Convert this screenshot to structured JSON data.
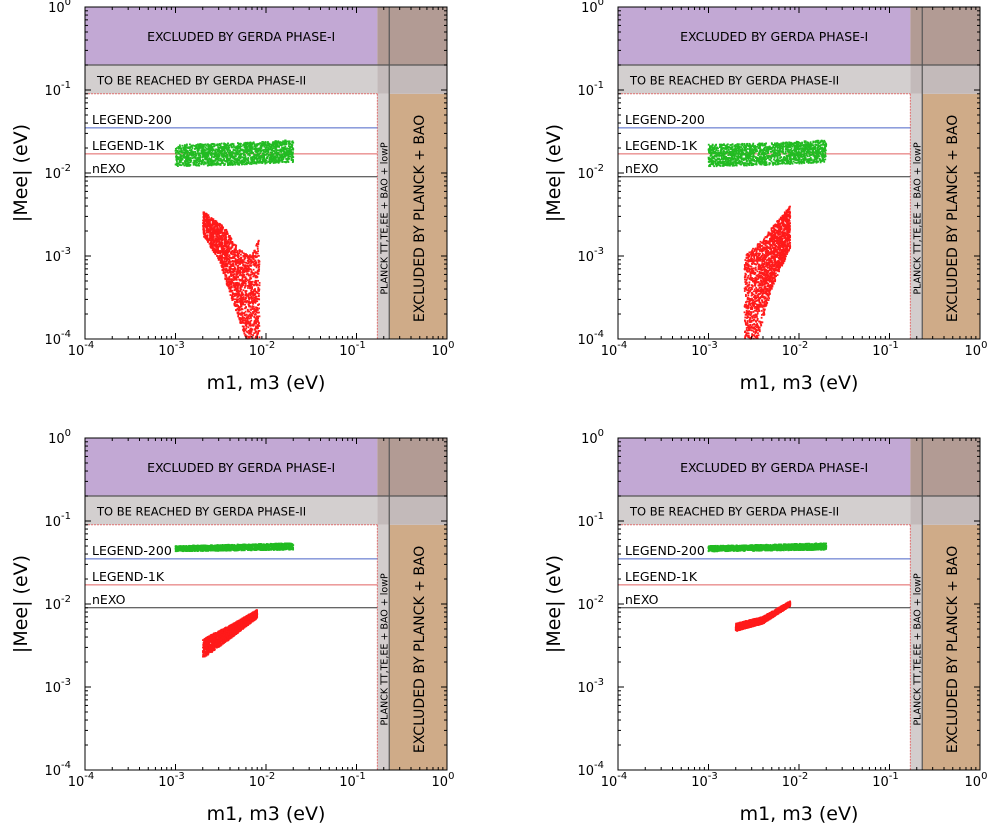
{
  "colors": {
    "gerda1": "#c2a8d4",
    "gerda2": "#d3cfcf",
    "overlap1": "#b29b94",
    "overlap2": "#c3baba",
    "planck_tt": "#d3cdcd",
    "planck_bao": "#cfab88",
    "legend200": "#4a64c8",
    "legend1k": "#e06060",
    "nexo": "#333333",
    "normal_points": "#22bb22",
    "inverted_points": "#ff1a1a"
  },
  "chart_data": [
    {
      "type": "scatter",
      "panel": "top-left",
      "xlabel": "m1, m3 (eV)",
      "ylabel": "|Mee| (eV)",
      "xscale": "log",
      "yscale": "log",
      "xlim": [
        0.0001,
        1
      ],
      "ylim": [
        0.0001,
        1
      ],
      "xticks": [
        {
          "base": "10",
          "exp": "-4"
        },
        {
          "base": "10",
          "exp": "-3"
        },
        {
          "base": "10",
          "exp": "-2"
        },
        {
          "base": "10",
          "exp": "-1"
        },
        {
          "base": "10",
          "exp": "0"
        }
      ],
      "yticks": [
        {
          "base": "10",
          "exp": "-4"
        },
        {
          "base": "10",
          "exp": "-3"
        },
        {
          "base": "10",
          "exp": "-2"
        },
        {
          "base": "10",
          "exp": "-1"
        },
        {
          "base": "10",
          "exp": "0"
        }
      ],
      "bands": {
        "gerda1": "EXCLUDED BY GERDA PHASE-I",
        "gerda2": "TO BE REACHED BY GERDA PHASE-II",
        "planck_tt": "PLANCK TT,TE,EE + BAO + lowP",
        "planck_bao": "EXCLUDED BY PLANCK + BAO"
      },
      "band_limits": {
        "gerda1_y": [
          0.2,
          1
        ],
        "gerda2_y": [
          0.09,
          0.2
        ],
        "planck_tt_x": [
          0.17,
          0.23
        ],
        "planck_bao_x": [
          0.23,
          1
        ]
      },
      "sensitivity_lines": [
        {
          "label": "LEGEND-200",
          "y": 0.035,
          "color": "legend200"
        },
        {
          "label": "LEGEND-1K",
          "y": 0.017,
          "color": "legend1k"
        },
        {
          "label": "nEXO",
          "y": 0.009,
          "color": "nexo"
        }
      ],
      "series": [
        {
          "color": "normal_points",
          "points": [
            [
              0.001,
              0.0165
            ],
            [
              0.002,
              0.0165
            ],
            [
              0.005,
              0.017
            ],
            [
              0.01,
              0.0175
            ],
            [
              0.02,
              0.018
            ]
          ],
          "spread_upper": [
            [
              0.001,
              0.022
            ],
            [
              0.005,
              0.023
            ],
            [
              0.02,
              0.025
            ]
          ],
          "spread_lower": [
            [
              0.001,
              0.012
            ],
            [
              0.005,
              0.0125
            ],
            [
              0.02,
              0.0135
            ]
          ]
        },
        {
          "color": "inverted_points",
          "upper": [
            [
              0.002,
              0.0035
            ],
            [
              0.0035,
              0.0022
            ],
            [
              0.005,
              0.0012
            ],
            [
              0.007,
              0.001
            ],
            [
              0.0085,
              0.0017
            ]
          ],
          "lower": [
            [
              0.002,
              0.0018
            ],
            [
              0.003,
              0.0009
            ],
            [
              0.004,
              0.00035
            ],
            [
              0.006,
              0.0001
            ],
            [
              0.0085,
              0.0001
            ]
          ]
        }
      ]
    },
    {
      "type": "scatter",
      "panel": "top-right",
      "xlabel": "m1, m3 (eV)",
      "ylabel": "|Mee| (eV)",
      "xscale": "log",
      "yscale": "log",
      "xlim": [
        0.0001,
        1
      ],
      "ylim": [
        0.0001,
        1
      ],
      "xticks": [
        {
          "base": "10",
          "exp": "-4"
        },
        {
          "base": "10",
          "exp": "-3"
        },
        {
          "base": "10",
          "exp": "-2"
        },
        {
          "base": "10",
          "exp": "-1"
        },
        {
          "base": "10",
          "exp": "0"
        }
      ],
      "yticks": [
        {
          "base": "10",
          "exp": "-4"
        },
        {
          "base": "10",
          "exp": "-3"
        },
        {
          "base": "10",
          "exp": "-2"
        },
        {
          "base": "10",
          "exp": "-1"
        },
        {
          "base": "10",
          "exp": "0"
        }
      ],
      "bands": {
        "gerda1": "EXCLUDED BY GERDA PHASE-I",
        "gerda2": "TO BE REACHED BY GERDA PHASE-II",
        "planck_tt": "PLANCK TT,TE,EE + BAO + lowP",
        "planck_bao": "EXCLUDED BY PLANCK + BAO"
      },
      "band_limits": {
        "gerda1_y": [
          0.2,
          1
        ],
        "gerda2_y": [
          0.09,
          0.2
        ],
        "planck_tt_x": [
          0.17,
          0.23
        ],
        "planck_bao_x": [
          0.23,
          1
        ]
      },
      "sensitivity_lines": [
        {
          "label": "LEGEND-200",
          "y": 0.035,
          "color": "legend200"
        },
        {
          "label": "LEGEND-1K",
          "y": 0.017,
          "color": "legend1k"
        },
        {
          "label": "nEXO",
          "y": 0.009,
          "color": "nexo"
        }
      ],
      "series": [
        {
          "color": "normal_points",
          "points": [
            [
              0.001,
              0.0165
            ],
            [
              0.002,
              0.0165
            ],
            [
              0.005,
              0.017
            ],
            [
              0.01,
              0.0175
            ],
            [
              0.02,
              0.018
            ]
          ],
          "spread_upper": [
            [
              0.001,
              0.022
            ],
            [
              0.005,
              0.023
            ],
            [
              0.02,
              0.025
            ]
          ],
          "spread_lower": [
            [
              0.001,
              0.012
            ],
            [
              0.005,
              0.0125
            ],
            [
              0.02,
              0.0135
            ]
          ]
        },
        {
          "color": "inverted_points",
          "upper": [
            [
              0.0025,
              0.001
            ],
            [
              0.004,
              0.0016
            ],
            [
              0.006,
              0.0028
            ],
            [
              0.008,
              0.004
            ]
          ],
          "lower": [
            [
              0.0025,
              0.0001
            ],
            [
              0.0035,
              0.0001
            ],
            [
              0.005,
              0.0004
            ],
            [
              0.007,
              0.0009
            ],
            [
              0.008,
              0.0012
            ]
          ]
        }
      ]
    },
    {
      "type": "scatter",
      "panel": "bottom-left",
      "xlabel": "m1, m3 (eV)",
      "ylabel": "|Mee| (eV)",
      "xscale": "log",
      "yscale": "log",
      "xlim": [
        0.0001,
        1
      ],
      "ylim": [
        0.0001,
        1
      ],
      "xticks": [
        {
          "base": "10",
          "exp": "-4"
        },
        {
          "base": "10",
          "exp": "-3"
        },
        {
          "base": "10",
          "exp": "-2"
        },
        {
          "base": "10",
          "exp": "-1"
        },
        {
          "base": "10",
          "exp": "0"
        }
      ],
      "yticks": [
        {
          "base": "10",
          "exp": "-4"
        },
        {
          "base": "10",
          "exp": "-3"
        },
        {
          "base": "10",
          "exp": "-2"
        },
        {
          "base": "10",
          "exp": "-1"
        },
        {
          "base": "10",
          "exp": "0"
        }
      ],
      "bands": {
        "gerda1": "EXCLUDED BY GERDA PHASE-I",
        "gerda2": "TO BE REACHED BY GERDA PHASE-II",
        "planck_tt": "PLANCK TT,TE,EE + BAO + lowP",
        "planck_bao": "EXCLUDED BY PLANCK + BAO"
      },
      "band_limits": {
        "gerda1_y": [
          0.2,
          1
        ],
        "gerda2_y": [
          0.09,
          0.2
        ],
        "planck_tt_x": [
          0.17,
          0.23
        ],
        "planck_bao_x": [
          0.23,
          1
        ]
      },
      "sensitivity_lines": [
        {
          "label": "LEGEND-200",
          "y": 0.035,
          "color": "legend200"
        },
        {
          "label": "LEGEND-1K",
          "y": 0.017,
          "color": "legend1k"
        },
        {
          "label": "nEXO",
          "y": 0.009,
          "color": "nexo"
        }
      ],
      "series": [
        {
          "color": "normal_points",
          "points": [
            [
              0.001,
              0.046
            ],
            [
              0.005,
              0.047
            ],
            [
              0.02,
              0.049
            ]
          ],
          "spread_upper": [
            [
              0.001,
              0.05
            ],
            [
              0.02,
              0.054
            ]
          ],
          "spread_lower": [
            [
              0.001,
              0.043
            ],
            [
              0.02,
              0.045
            ]
          ]
        },
        {
          "color": "inverted_points",
          "upper": [
            [
              0.002,
              0.0038
            ],
            [
              0.004,
              0.0055
            ],
            [
              0.008,
              0.0085
            ]
          ],
          "lower": [
            [
              0.002,
              0.0022
            ],
            [
              0.004,
              0.0038
            ],
            [
              0.008,
              0.0068
            ]
          ]
        }
      ]
    },
    {
      "type": "scatter",
      "panel": "bottom-right",
      "xlabel": "m1, m3 (eV)",
      "ylabel": "|Mee| (eV)",
      "xscale": "log",
      "yscale": "log",
      "xlim": [
        0.0001,
        1
      ],
      "ylim": [
        0.0001,
        1
      ],
      "xticks": [
        {
          "base": "10",
          "exp": "-4"
        },
        {
          "base": "10",
          "exp": "-3"
        },
        {
          "base": "10",
          "exp": "-2"
        },
        {
          "base": "10",
          "exp": "-1"
        },
        {
          "base": "10",
          "exp": "0"
        }
      ],
      "yticks": [
        {
          "base": "10",
          "exp": "-4"
        },
        {
          "base": "10",
          "exp": "-3"
        },
        {
          "base": "10",
          "exp": "-2"
        },
        {
          "base": "10",
          "exp": "-1"
        },
        {
          "base": "10",
          "exp": "0"
        }
      ],
      "bands": {
        "gerda1": "EXCLUDED BY GERDA PHASE-I",
        "gerda2": "TO BE REACHED BY GERDA PHASE-II",
        "planck_tt": "PLANCK TT,TE,EE + BAO + lowP",
        "planck_bao": "EXCLUDED BY PLANCK + BAO"
      },
      "band_limits": {
        "gerda1_y": [
          0.2,
          1
        ],
        "gerda2_y": [
          0.09,
          0.2
        ],
        "planck_tt_x": [
          0.17,
          0.23
        ],
        "planck_bao_x": [
          0.23,
          1
        ]
      },
      "sensitivity_lines": [
        {
          "label": "LEGEND-200",
          "y": 0.035,
          "color": "legend200"
        },
        {
          "label": "LEGEND-1K",
          "y": 0.017,
          "color": "legend1k"
        },
        {
          "label": "nEXO",
          "y": 0.009,
          "color": "nexo"
        }
      ],
      "series": [
        {
          "color": "normal_points",
          "points": [
            [
              0.001,
              0.046
            ],
            [
              0.005,
              0.047
            ],
            [
              0.02,
              0.049
            ]
          ],
          "spread_upper": [
            [
              0.001,
              0.05
            ],
            [
              0.02,
              0.054
            ]
          ],
          "spread_lower": [
            [
              0.001,
              0.043
            ],
            [
              0.02,
              0.045
            ]
          ]
        },
        {
          "color": "inverted_points",
          "upper": [
            [
              0.002,
              0.0058
            ],
            [
              0.004,
              0.007
            ],
            [
              0.008,
              0.0108
            ]
          ],
          "lower": [
            [
              0.002,
              0.0047
            ],
            [
              0.004,
              0.0058
            ],
            [
              0.008,
              0.0095
            ]
          ]
        }
      ]
    }
  ]
}
